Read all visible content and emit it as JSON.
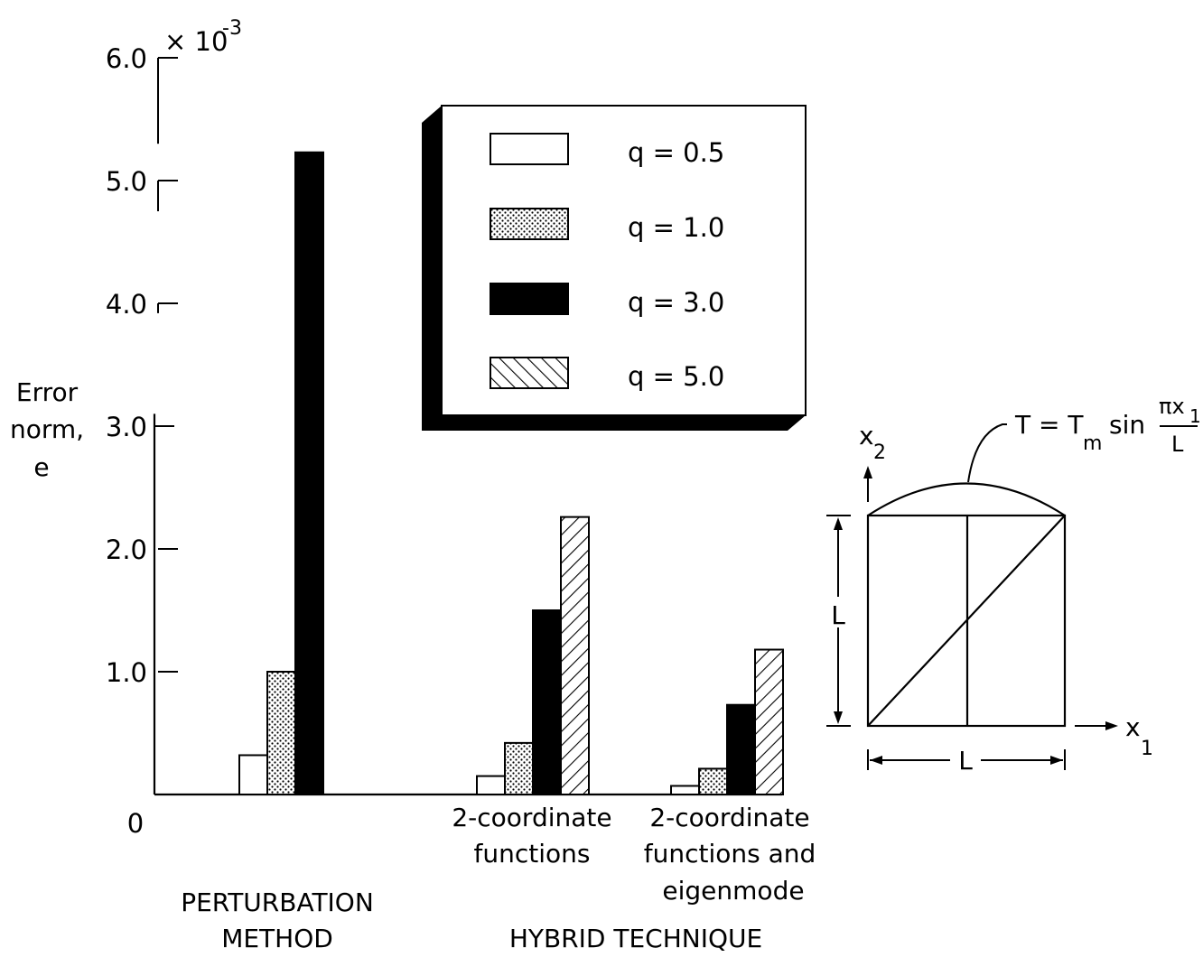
{
  "chart_data": {
    "type": "bar",
    "ylabel": [
      "Error",
      "norm,",
      "e"
    ],
    "y_multiplier": "× 10",
    "y_multiplier_exp": "-3",
    "ylim": [
      0,
      6.0
    ],
    "y_ticks": [
      {
        "value": 0,
        "label": "0"
      },
      {
        "value": 1.0,
        "label": "1.0"
      },
      {
        "value": 2.0,
        "label": "2.0"
      },
      {
        "value": 3.0,
        "label": "3.0"
      },
      {
        "value": 4.0,
        "label": "4.0"
      },
      {
        "value": 5.0,
        "label": "5.0"
      },
      {
        "value": 6.0,
        "label": "6.0"
      }
    ],
    "series": [
      {
        "name": "q = 0.5",
        "fill": "white"
      },
      {
        "name": "q = 1.0",
        "fill": "dotted"
      },
      {
        "name": "q = 3.0",
        "fill": "black"
      },
      {
        "name": "q = 5.0",
        "fill": "hatched"
      }
    ],
    "groups": [
      {
        "key": "perturbation",
        "label": [],
        "values": [
          0.32,
          1.0,
          5.23,
          null
        ]
      },
      {
        "key": "hybrid-2coord",
        "label": [
          "2-coordinate",
          "functions"
        ],
        "values": [
          0.15,
          0.42,
          1.5,
          2.26
        ]
      },
      {
        "key": "hybrid-2coord-eig",
        "label": [
          "2-coordinate",
          "functions and",
          "eigenmode"
        ],
        "values": [
          0.07,
          0.21,
          0.73,
          1.18
        ]
      }
    ],
    "category_labels": [
      {
        "key": "perturbation",
        "lines": [
          "PERTURBATION",
          "METHOD"
        ]
      },
      {
        "key": "hybrid",
        "lines": [
          "HYBRID TECHNIQUE"
        ]
      }
    ],
    "legend_position": "top-center",
    "grid": false
  },
  "diagram": {
    "equation_lhs": "T = T",
    "equation_sub": "m",
    "equation_sin": "sin",
    "frac_num": "πx",
    "frac_num_sub": "1",
    "frac_den": "L",
    "x1_axis": "x",
    "x1_sub": "1",
    "x2_axis": "x",
    "x2_sub": "2",
    "side_label": "L",
    "bottom_label": "L"
  }
}
